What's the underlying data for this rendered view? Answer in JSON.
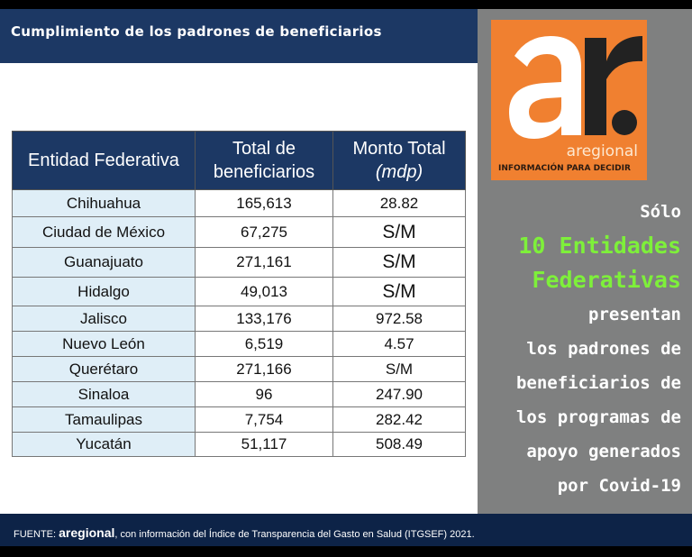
{
  "header": {
    "title": "Cumplimiento de los padrones de beneficiarios"
  },
  "logo": {
    "mark": "ar.",
    "name": "aregional",
    "tagline": "INFORMACIÓN PARA DECIDIR"
  },
  "message": {
    "l1": "Sólo",
    "l2": "10 Entidades",
    "l3": "Federativas",
    "l4": "presentan",
    "l5": "los padrones de",
    "l6": "beneficiarios de",
    "l7": "los programas de",
    "l8": "apoyo generados",
    "l9": "por Covid-19"
  },
  "colors": {
    "navy": "#1c3864",
    "orange": "#f08030",
    "green": "#7ef03a",
    "gray": "#7f8080"
  },
  "table": {
    "headers": [
      "Entidad Federativa",
      "Total de beneficiarios",
      "Monto Total"
    ],
    "monto_unit": "(mdp)",
    "rows": [
      [
        "Chihuahua",
        "165,613",
        "28.82"
      ],
      [
        "Ciudad de México",
        "67,275",
        "S/M"
      ],
      [
        "Guanajuato",
        "271,161",
        "S/M"
      ],
      [
        "Hidalgo",
        "49,013",
        "S/M"
      ],
      [
        "Jalisco",
        "133,176",
        "972.58"
      ],
      [
        "Nuevo León",
        "6,519",
        "4.57"
      ],
      [
        "Querétaro",
        "271,166",
        "S/M"
      ],
      [
        "Sinaloa",
        "96",
        "247.90"
      ],
      [
        "Tamaulipas",
        "7,754",
        "282.42"
      ],
      [
        "Yucatán",
        "51,117",
        "508.49"
      ]
    ]
  },
  "footer": {
    "prefix": "FUENTE: ",
    "brand": "aregional",
    "text": ", con información del Índice de Transparencia del Gasto en Salud (ITGSEF) 2021."
  }
}
